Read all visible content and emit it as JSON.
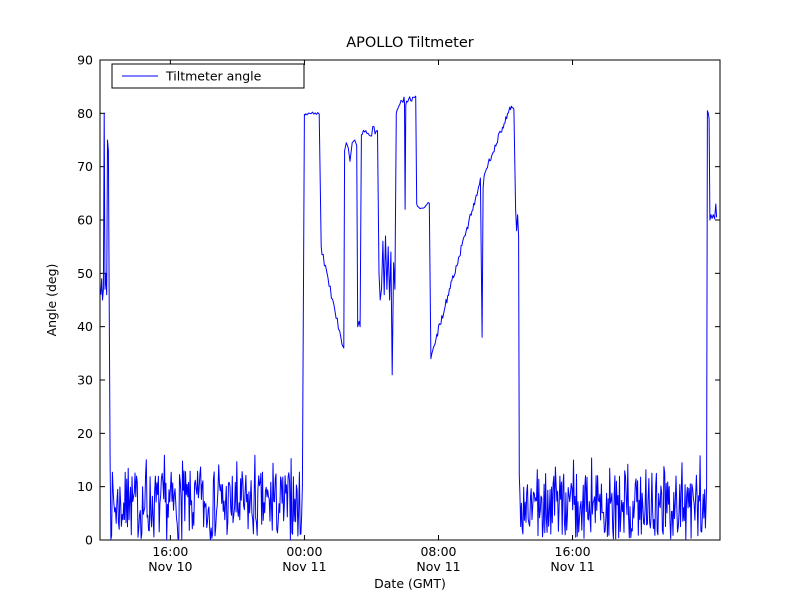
{
  "chart_data": {
    "type": "line",
    "title": "APOLLO Tiltmeter",
    "xlabel": "Date (GMT)",
    "ylabel": "Angle (deg)",
    "ylim": [
      0,
      90
    ],
    "y_ticks": [
      0,
      10,
      20,
      30,
      40,
      50,
      60,
      70,
      80,
      90
    ],
    "x_unit": "hours, 0 = 12:00 Nov 10 GMT",
    "x_hours_range": [
      -0.2,
      36.8
    ],
    "x_ticks": [
      {
        "t": 4,
        "label": [
          "16:00",
          "Nov 10"
        ]
      },
      {
        "t": 12,
        "label": [
          "00:00",
          "Nov 11"
        ]
      },
      {
        "t": 20,
        "label": [
          "08:00",
          "Nov 11"
        ]
      },
      {
        "t": 28,
        "label": [
          "16:00",
          "Nov 11"
        ]
      }
    ],
    "grid": false,
    "legend": {
      "position": "upper left",
      "entries": [
        "Tiltmeter angle"
      ]
    },
    "series_color": "#0000ff",
    "segments": [
      {
        "type": "points",
        "pts": [
          [
            -0.15,
            46
          ],
          [
            -0.1,
            49
          ],
          [
            -0.05,
            45
          ],
          [
            0.0,
            47
          ],
          [
            0.05,
            80
          ],
          [
            0.1,
            47
          ],
          [
            0.15,
            50
          ],
          [
            0.2,
            46
          ],
          [
            0.25,
            75
          ],
          [
            0.3,
            73
          ],
          [
            0.35,
            45
          ],
          [
            0.4,
            15
          ]
        ]
      },
      {
        "type": "noise",
        "t0": 0.45,
        "t1": 11.9,
        "dt": 0.045,
        "min": 0,
        "max": 13,
        "spike_every": 24,
        "spike_max": 16,
        "seed": 7
      },
      {
        "type": "points",
        "pts": [
          [
            12.0,
            79.8
          ]
        ]
      },
      {
        "type": "ramp",
        "t0": 12.0,
        "t1": 12.95,
        "y0": 79.8,
        "y1": 80.2,
        "dt": 0.08,
        "jitter": 0.35,
        "seed": 8
      },
      {
        "type": "points",
        "pts": [
          [
            13.0,
            55
          ]
        ]
      },
      {
        "type": "ramp",
        "t0": 13.05,
        "t1": 14.3,
        "y0": 54,
        "y1": 36,
        "dt": 0.07,
        "jitter": 0.8,
        "seed": 9
      },
      {
        "type": "points",
        "pts": [
          [
            14.35,
            36
          ],
          [
            14.4,
            73
          ],
          [
            14.5,
            74.5
          ],
          [
            14.62,
            73.5
          ],
          [
            14.72,
            71
          ],
          [
            14.85,
            74.5
          ],
          [
            15.0,
            75
          ],
          [
            15.12,
            74
          ],
          [
            15.18,
            40
          ],
          [
            15.26,
            41
          ],
          [
            15.32,
            40
          ],
          [
            15.4,
            76
          ]
        ]
      },
      {
        "type": "ramp",
        "t0": 15.45,
        "t1": 16.4,
        "y0": 76,
        "y1": 77,
        "dt": 0.07,
        "jitter": 0.9,
        "seed": 10
      },
      {
        "type": "points",
        "pts": [
          [
            16.45,
            50
          ],
          [
            16.52,
            45
          ],
          [
            16.6,
            47
          ],
          [
            16.68,
            56
          ],
          [
            16.76,
            46
          ],
          [
            16.84,
            57
          ],
          [
            16.92,
            47
          ],
          [
            17.0,
            55
          ],
          [
            17.08,
            45
          ],
          [
            17.16,
            54
          ],
          [
            17.24,
            31
          ],
          [
            17.32,
            52
          ],
          [
            17.4,
            47
          ],
          [
            17.48,
            80
          ]
        ]
      },
      {
        "type": "ramp",
        "t0": 17.52,
        "t1": 17.94,
        "y0": 80.5,
        "y1": 83,
        "dt": 0.06,
        "jitter": 0.7,
        "seed": 11
      },
      {
        "type": "points",
        "pts": [
          [
            17.97,
            82
          ],
          [
            18.01,
            62
          ],
          [
            18.05,
            81.5
          ]
        ]
      },
      {
        "type": "ramp",
        "t0": 18.1,
        "t1": 18.65,
        "y0": 82.5,
        "y1": 83,
        "dt": 0.06,
        "jitter": 0.5,
        "seed": 12
      },
      {
        "type": "points",
        "pts": [
          [
            18.7,
            63
          ]
        ]
      },
      {
        "type": "ramp",
        "t0": 18.75,
        "t1": 19.5,
        "y0": 62.5,
        "y1": 63,
        "dt": 0.07,
        "jitter": 0.5,
        "seed": 13
      },
      {
        "type": "points",
        "pts": [
          [
            19.55,
            34
          ]
        ]
      },
      {
        "type": "ramp",
        "t0": 19.6,
        "t1": 22.55,
        "y0": 35,
        "y1": 68,
        "dt": 0.05,
        "jitter": 0.7,
        "seed": 14
      },
      {
        "type": "points",
        "pts": [
          [
            22.6,
            38
          ],
          [
            22.66,
            66
          ]
        ]
      },
      {
        "type": "ramp",
        "t0": 22.72,
        "t1": 24.2,
        "y0": 68.5,
        "y1": 80.5,
        "dt": 0.05,
        "jitter": 0.6,
        "seed": 15
      },
      {
        "type": "ramp",
        "t0": 24.25,
        "t1": 24.55,
        "y0": 81,
        "y1": 81.3,
        "dt": 0.05,
        "jitter": 0.5,
        "seed": 16
      },
      {
        "type": "points",
        "pts": [
          [
            24.6,
            62
          ],
          [
            24.66,
            58
          ],
          [
            24.72,
            61
          ],
          [
            24.78,
            57
          ],
          [
            24.82,
            12
          ]
        ]
      },
      {
        "type": "noise",
        "t0": 24.86,
        "t1": 35.95,
        "dt": 0.045,
        "min": 0,
        "max": 13,
        "spike_every": 24,
        "spike_max": 16,
        "seed": 17
      },
      {
        "type": "points",
        "pts": [
          [
            36.0,
            10
          ],
          [
            36.05,
            80.5
          ],
          [
            36.1,
            80
          ],
          [
            36.15,
            79
          ],
          [
            36.2,
            60
          ],
          [
            36.26,
            61
          ],
          [
            36.32,
            60.3
          ],
          [
            36.4,
            61
          ],
          [
            36.48,
            60.2
          ],
          [
            36.55,
            63
          ],
          [
            36.6,
            60.5
          ]
        ]
      }
    ]
  }
}
